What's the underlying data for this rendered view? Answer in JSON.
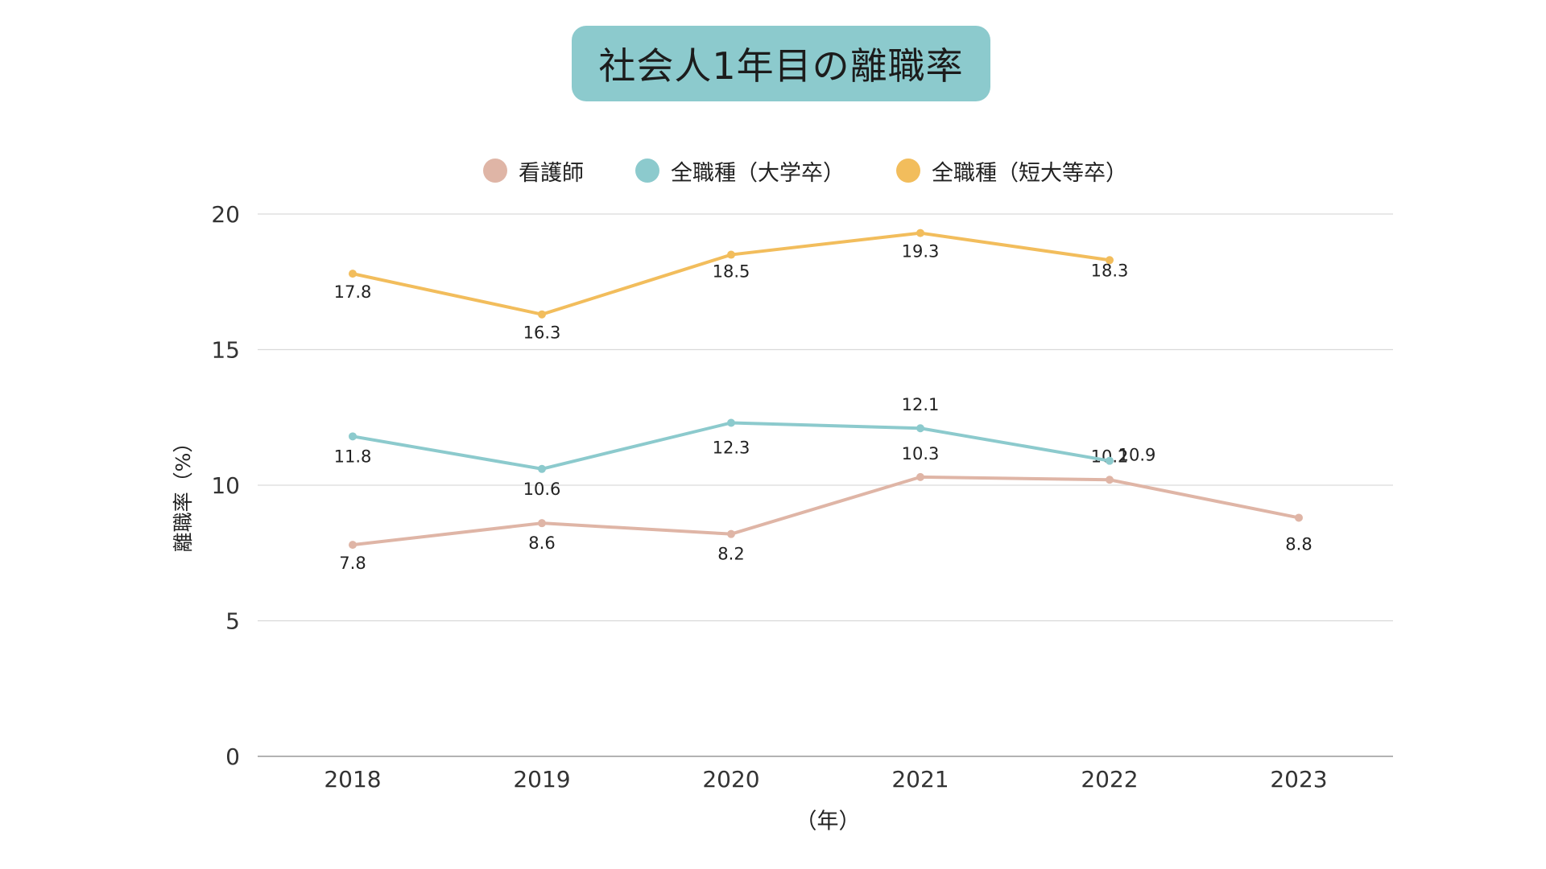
{
  "title": "社会人1年目の離職率",
  "chart_data": {
    "type": "line",
    "title": "社会人1年目の離職率",
    "xlabel": "（年）",
    "ylabel": "離職率（%）",
    "categories": [
      "2018",
      "2019",
      "2020",
      "2021",
      "2022",
      "2023"
    ],
    "ylim": [
      0,
      20
    ],
    "yticks": [
      0,
      5,
      10,
      15,
      20
    ],
    "grid": true,
    "legend_position": "top",
    "series": [
      {
        "name": "看護師",
        "color": "#dfb5a6",
        "values": [
          7.8,
          8.6,
          8.2,
          10.3,
          10.2,
          8.8
        ],
        "labels": [
          "7.8",
          "8.6",
          "8.2",
          "10.3",
          "10.2",
          "8.8"
        ]
      },
      {
        "name": "全職種（大学卒）",
        "color": "#8ccacd",
        "values": [
          11.8,
          10.6,
          12.3,
          12.1,
          10.9,
          null
        ],
        "labels": [
          "11.8",
          "10.6",
          "12.3",
          "12.1",
          "10.9",
          null
        ]
      },
      {
        "name": "全職種（短大等卒）",
        "color": "#f2bd5c",
        "values": [
          17.8,
          16.3,
          18.5,
          19.3,
          18.3,
          null
        ],
        "labels": [
          "17.8",
          "16.3",
          "18.5",
          "19.3",
          "18.3",
          null
        ]
      }
    ]
  }
}
